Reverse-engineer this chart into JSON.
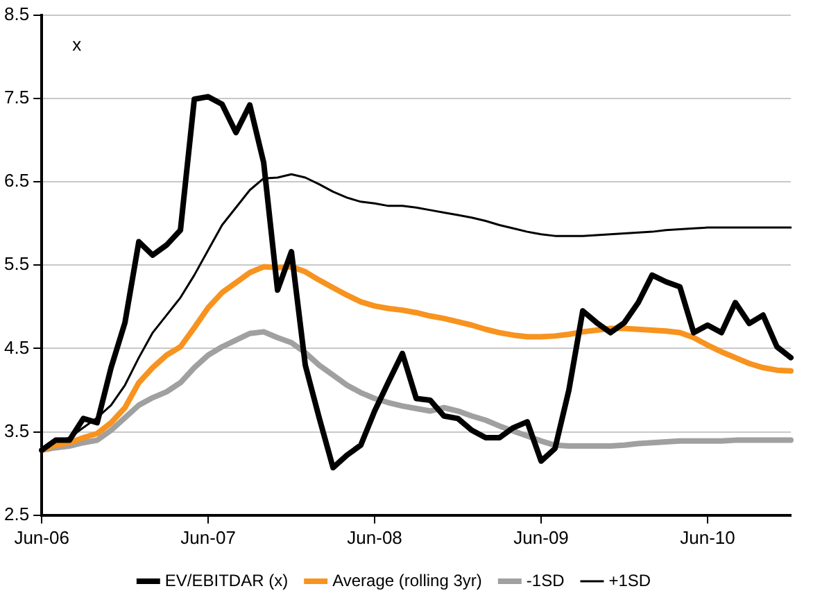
{
  "chart_data": {
    "type": "line",
    "categories": [
      "Jun-06",
      null,
      null,
      null,
      null,
      null,
      null,
      null,
      null,
      null,
      null,
      null,
      "Jun-07",
      null,
      null,
      null,
      null,
      null,
      null,
      null,
      null,
      null,
      null,
      null,
      "Jun-08",
      null,
      null,
      null,
      null,
      null,
      null,
      null,
      null,
      null,
      null,
      null,
      "Jun-09",
      null,
      null,
      null,
      null,
      null,
      null,
      null,
      null,
      null,
      null,
      null,
      "Jun-10",
      null,
      null,
      null,
      null,
      null,
      null
    ],
    "series": [
      {
        "name": "EV/EBITDAR (x)",
        "color": "#000000",
        "values": [
          3.28,
          3.4,
          3.4,
          3.66,
          3.61,
          4.27,
          4.81,
          5.78,
          5.62,
          5.74,
          5.92,
          7.49,
          7.52,
          7.43,
          7.09,
          7.42,
          6.73,
          5.2,
          5.66,
          4.3,
          3.67,
          3.07,
          3.22,
          3.34,
          3.75,
          4.1,
          4.44,
          3.9,
          3.88,
          3.69,
          3.66,
          3.52,
          3.43,
          3.43,
          3.55,
          3.62,
          3.15,
          3.3,
          4.0,
          4.95,
          4.81,
          4.69,
          4.81,
          5.05,
          5.38,
          5.3,
          5.24,
          4.69,
          4.78,
          4.69,
          5.05,
          4.8,
          4.9,
          4.52,
          4.39
        ]
      },
      {
        "name": "Average (rolling 3yr)",
        "color": "#f7931e",
        "values": [
          3.28,
          3.34,
          3.37,
          3.43,
          3.48,
          3.61,
          3.79,
          4.09,
          4.27,
          4.42,
          4.52,
          4.75,
          4.99,
          5.17,
          5.29,
          5.41,
          5.48,
          5.47,
          5.48,
          5.42,
          5.32,
          5.23,
          5.14,
          5.06,
          5.01,
          4.98,
          4.96,
          4.93,
          4.89,
          4.86,
          4.82,
          4.78,
          4.73,
          4.69,
          4.66,
          4.64,
          4.64,
          4.65,
          4.67,
          4.7,
          4.72,
          4.74,
          4.74,
          4.73,
          4.72,
          4.71,
          4.69,
          4.63,
          4.54,
          4.46,
          4.39,
          4.32,
          4.27,
          4.24,
          4.23
        ]
      },
      {
        "name": "-1SD",
        "color": "#a0a0a0",
        "values": [
          3.28,
          3.31,
          3.33,
          3.37,
          3.4,
          3.52,
          3.67,
          3.82,
          3.91,
          3.98,
          4.09,
          4.27,
          4.42,
          4.52,
          4.6,
          4.68,
          4.7,
          4.63,
          4.57,
          4.45,
          4.3,
          4.18,
          4.06,
          3.97,
          3.9,
          3.85,
          3.81,
          3.78,
          3.75,
          3.79,
          3.75,
          3.69,
          3.64,
          3.57,
          3.51,
          3.45,
          3.39,
          3.34,
          3.33,
          3.33,
          3.33,
          3.33,
          3.34,
          3.36,
          3.37,
          3.38,
          3.39,
          3.39,
          3.39,
          3.39,
          3.4,
          3.4,
          3.4,
          3.4,
          3.4
        ]
      },
      {
        "name": "+1SD",
        "color": "#000000",
        "values": [
          3.28,
          3.37,
          3.43,
          3.55,
          3.67,
          3.82,
          4.06,
          4.39,
          4.69,
          4.9,
          5.11,
          5.38,
          5.68,
          5.98,
          6.19,
          6.4,
          6.54,
          6.55,
          6.59,
          6.55,
          6.47,
          6.38,
          6.31,
          6.26,
          6.24,
          6.21,
          6.21,
          6.19,
          6.16,
          6.13,
          6.1,
          6.07,
          6.03,
          5.98,
          5.94,
          5.9,
          5.87,
          5.85,
          5.85,
          5.85,
          5.86,
          5.87,
          5.88,
          5.89,
          5.9,
          5.92,
          5.93,
          5.94,
          5.95,
          5.95,
          5.95,
          5.95,
          5.95,
          5.95,
          5.95
        ]
      }
    ],
    "ylim": [
      2.5,
      8.5
    ],
    "yticks": [
      2.5,
      3.5,
      4.5,
      5.5,
      6.5,
      7.5,
      8.5
    ],
    "grid": "y",
    "legend": "bottom",
    "marker": "none",
    "line_style": "solid",
    "annotations": [
      "x"
    ]
  }
}
